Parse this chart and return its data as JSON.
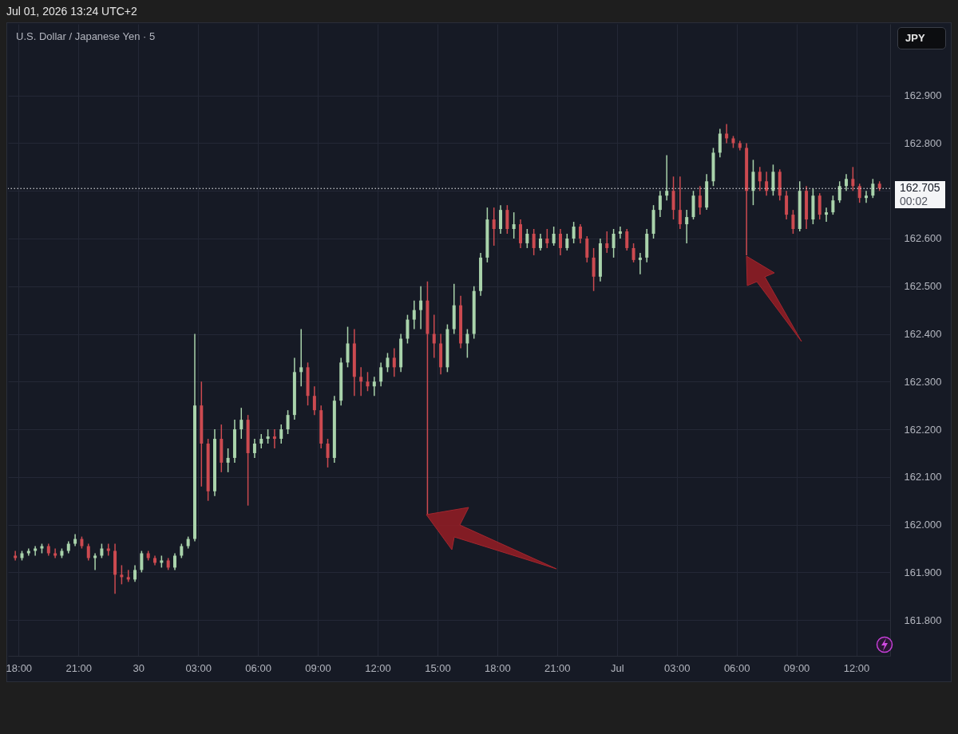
{
  "chart_data": {
    "type": "candlestick",
    "title": "U.S. Dollar / Japanese Yen · 5",
    "ylabel": "JPY",
    "annotations": [
      "Jul 01, 2026 13:24 UTC+2",
      "00:02"
    ],
    "x": [
      "2026-06-29T17:50",
      "2026-06-29T18:10",
      "2026-06-29T18:30",
      "2026-06-29T18:50",
      "2026-06-29T19:10",
      "2026-06-29T19:30",
      "2026-06-29T19:50",
      "2026-06-29T20:10",
      "2026-06-29T20:30",
      "2026-06-29T20:50",
      "2026-06-29T21:10",
      "2026-06-29T21:30",
      "2026-06-29T21:50",
      "2026-06-29T22:10",
      "2026-06-29T22:30",
      "2026-06-29T22:50",
      "2026-06-29T23:10",
      "2026-06-29T23:30",
      "2026-06-29T23:50",
      "2026-06-30T00:10",
      "2026-06-30T00:30",
      "2026-06-30T00:50",
      "2026-06-30T01:10",
      "2026-06-30T01:30",
      "2026-06-30T01:50",
      "2026-06-30T02:10",
      "2026-06-30T02:30",
      "2026-06-30T02:50",
      "2026-06-30T03:10",
      "2026-06-30T03:30",
      "2026-06-30T03:50",
      "2026-06-30T04:10",
      "2026-06-30T04:30",
      "2026-06-30T04:50",
      "2026-06-30T05:10",
      "2026-06-30T05:30",
      "2026-06-30T05:50",
      "2026-06-30T06:10",
      "2026-06-30T06:30",
      "2026-06-30T06:50",
      "2026-06-30T07:10",
      "2026-06-30T07:30",
      "2026-06-30T07:50",
      "2026-06-30T08:10",
      "2026-06-30T08:30",
      "2026-06-30T08:50",
      "2026-06-30T09:10",
      "2026-06-30T09:30",
      "2026-06-30T09:50",
      "2026-06-30T10:10",
      "2026-06-30T10:30",
      "2026-06-30T10:50",
      "2026-06-30T11:10",
      "2026-06-30T11:30",
      "2026-06-30T11:50",
      "2026-06-30T12:10",
      "2026-06-30T12:30",
      "2026-06-30T12:50",
      "2026-06-30T13:10",
      "2026-06-30T13:30",
      "2026-06-30T13:50",
      "2026-06-30T14:10",
      "2026-06-30T14:30",
      "2026-06-30T14:50",
      "2026-06-30T15:10",
      "2026-06-30T15:30",
      "2026-06-30T15:50",
      "2026-06-30T16:10",
      "2026-06-30T16:30",
      "2026-06-30T16:50",
      "2026-06-30T17:10",
      "2026-06-30T17:30",
      "2026-06-30T17:50",
      "2026-06-30T18:10",
      "2026-06-30T18:30",
      "2026-06-30T18:50",
      "2026-06-30T19:10",
      "2026-06-30T19:30",
      "2026-06-30T19:50",
      "2026-06-30T20:10",
      "2026-06-30T20:30",
      "2026-06-30T20:50",
      "2026-06-30T21:10",
      "2026-06-30T21:30",
      "2026-06-30T21:50",
      "2026-06-30T22:10",
      "2026-06-30T22:30",
      "2026-06-30T22:50",
      "2026-06-30T23:10",
      "2026-06-30T23:30",
      "2026-06-30T23:50",
      "2026-07-01T00:10",
      "2026-07-01T00:30",
      "2026-07-01T00:50",
      "2026-07-01T01:10",
      "2026-07-01T01:30",
      "2026-07-01T01:50",
      "2026-07-01T02:10",
      "2026-07-01T02:30",
      "2026-07-01T02:50",
      "2026-07-01T03:10",
      "2026-07-01T03:30",
      "2026-07-01T03:50",
      "2026-07-01T04:10",
      "2026-07-01T04:30",
      "2026-07-01T04:50",
      "2026-07-01T05:10",
      "2026-07-01T05:30",
      "2026-07-01T05:50",
      "2026-07-01T06:10",
      "2026-07-01T06:30",
      "2026-07-01T06:50",
      "2026-07-01T07:10",
      "2026-07-01T07:30",
      "2026-07-01T07:50",
      "2026-07-01T08:10",
      "2026-07-01T08:30",
      "2026-07-01T08:50",
      "2026-07-01T09:10",
      "2026-07-01T09:30",
      "2026-07-01T09:50",
      "2026-07-01T10:10",
      "2026-07-01T10:30",
      "2026-07-01T10:50",
      "2026-07-01T11:10",
      "2026-07-01T11:30",
      "2026-07-01T11:50",
      "2026-07-01T12:10",
      "2026-07-01T12:30",
      "2026-07-01T12:50",
      "2026-07-01T13:10"
    ],
    "ohlc": [
      [
        161.935,
        161.945,
        161.925,
        161.93
      ],
      [
        161.93,
        161.945,
        161.925,
        161.94
      ],
      [
        161.94,
        161.95,
        161.935,
        161.945
      ],
      [
        161.945,
        161.955,
        161.935,
        161.95
      ],
      [
        161.95,
        161.96,
        161.94,
        161.955
      ],
      [
        161.955,
        161.96,
        161.935,
        161.94
      ],
      [
        161.94,
        161.95,
        161.93,
        161.935
      ],
      [
        161.935,
        161.95,
        161.93,
        161.945
      ],
      [
        161.945,
        161.965,
        161.94,
        161.96
      ],
      [
        161.96,
        161.98,
        161.955,
        161.97
      ],
      [
        161.97,
        161.975,
        161.95,
        161.955
      ],
      [
        161.955,
        161.96,
        161.925,
        161.93
      ],
      [
        161.93,
        161.94,
        161.905,
        161.935
      ],
      [
        161.935,
        161.96,
        161.93,
        161.95
      ],
      [
        161.95,
        161.96,
        161.935,
        161.945
      ],
      [
        161.945,
        161.96,
        161.855,
        161.895
      ],
      [
        161.895,
        161.915,
        161.875,
        161.89
      ],
      [
        161.89,
        161.905,
        161.88,
        161.885
      ],
      [
        161.885,
        161.915,
        161.88,
        161.905
      ],
      [
        161.905,
        161.945,
        161.9,
        161.94
      ],
      [
        161.94,
        161.945,
        161.925,
        161.93
      ],
      [
        161.93,
        161.935,
        161.915,
        161.92
      ],
      [
        161.92,
        161.935,
        161.91,
        161.925
      ],
      [
        161.925,
        161.93,
        161.905,
        161.91
      ],
      [
        161.91,
        161.94,
        161.905,
        161.935
      ],
      [
        161.935,
        161.96,
        161.93,
        161.955
      ],
      [
        161.955,
        161.975,
        161.95,
        161.97
      ],
      [
        161.97,
        162.4,
        161.965,
        162.25
      ],
      [
        162.25,
        162.3,
        162.08,
        162.17
      ],
      [
        162.17,
        162.18,
        162.05,
        162.07
      ],
      [
        162.07,
        162.2,
        162.06,
        162.18
      ],
      [
        162.18,
        162.21,
        162.11,
        162.13
      ],
      [
        162.13,
        162.16,
        162.11,
        162.14
      ],
      [
        162.14,
        162.22,
        162.13,
        162.2
      ],
      [
        162.2,
        162.245,
        162.18,
        162.22
      ],
      [
        162.22,
        162.23,
        162.04,
        162.15
      ],
      [
        162.15,
        162.18,
        162.14,
        162.17
      ],
      [
        162.17,
        162.19,
        162.16,
        162.18
      ],
      [
        162.18,
        162.2,
        162.17,
        162.185
      ],
      [
        162.185,
        162.2,
        162.16,
        162.18
      ],
      [
        162.18,
        162.21,
        162.17,
        162.2
      ],
      [
        162.2,
        162.24,
        162.19,
        162.23
      ],
      [
        162.23,
        162.35,
        162.22,
        162.32
      ],
      [
        162.32,
        162.41,
        162.29,
        162.33
      ],
      [
        162.33,
        162.34,
        162.25,
        162.27
      ],
      [
        162.27,
        162.29,
        162.23,
        162.24
      ],
      [
        162.24,
        162.25,
        162.16,
        162.17
      ],
      [
        162.17,
        162.18,
        162.12,
        162.14
      ],
      [
        162.14,
        162.27,
        162.13,
        162.26
      ],
      [
        162.26,
        162.35,
        162.25,
        162.34
      ],
      [
        162.34,
        162.415,
        162.33,
        162.38
      ],
      [
        162.38,
        162.41,
        162.27,
        162.31
      ],
      [
        162.31,
        162.33,
        162.27,
        162.3
      ],
      [
        162.3,
        162.32,
        162.28,
        162.29
      ],
      [
        162.29,
        162.31,
        162.27,
        162.3
      ],
      [
        162.3,
        162.34,
        162.29,
        162.33
      ],
      [
        162.33,
        162.36,
        162.32,
        162.35
      ],
      [
        162.35,
        162.37,
        162.31,
        162.33
      ],
      [
        162.33,
        162.4,
        162.32,
        162.39
      ],
      [
        162.39,
        162.44,
        162.38,
        162.43
      ],
      [
        162.43,
        162.47,
        162.41,
        162.45
      ],
      [
        162.45,
        162.5,
        162.41,
        162.47
      ],
      [
        162.47,
        162.51,
        162.02,
        162.4
      ],
      [
        162.4,
        162.44,
        162.35,
        162.38
      ],
      [
        162.38,
        162.4,
        162.315,
        162.33
      ],
      [
        162.33,
        162.42,
        162.32,
        162.41
      ],
      [
        162.41,
        162.505,
        162.4,
        162.46
      ],
      [
        162.46,
        162.48,
        162.37,
        162.38
      ],
      [
        162.38,
        162.41,
        162.35,
        162.4
      ],
      [
        162.4,
        162.5,
        162.39,
        162.49
      ],
      [
        162.49,
        162.57,
        162.48,
        162.56
      ],
      [
        162.56,
        162.665,
        162.55,
        162.64
      ],
      [
        162.64,
        162.665,
        162.585,
        162.62
      ],
      [
        162.62,
        162.67,
        162.61,
        162.66
      ],
      [
        162.66,
        162.67,
        162.61,
        162.62
      ],
      [
        162.62,
        162.655,
        162.6,
        162.63
      ],
      [
        162.63,
        162.64,
        162.58,
        162.59
      ],
      [
        162.59,
        162.62,
        162.58,
        162.61
      ],
      [
        162.61,
        162.62,
        162.565,
        162.58
      ],
      [
        162.58,
        162.61,
        162.575,
        162.6
      ],
      [
        162.6,
        162.62,
        162.58,
        162.59
      ],
      [
        162.59,
        162.625,
        162.585,
        162.61
      ],
      [
        162.61,
        162.62,
        162.565,
        162.58
      ],
      [
        162.58,
        162.61,
        162.575,
        162.6
      ],
      [
        162.6,
        162.635,
        162.59,
        162.625
      ],
      [
        162.625,
        162.63,
        162.59,
        162.6
      ],
      [
        162.6,
        162.605,
        162.55,
        162.56
      ],
      [
        162.56,
        162.58,
        162.49,
        162.52
      ],
      [
        162.52,
        162.6,
        162.51,
        162.59
      ],
      [
        162.59,
        162.615,
        162.57,
        162.58
      ],
      [
        162.58,
        162.62,
        162.56,
        162.61
      ],
      [
        162.61,
        162.625,
        162.6,
        162.615
      ],
      [
        162.615,
        162.62,
        162.575,
        162.58
      ],
      [
        162.58,
        162.59,
        162.55,
        162.555
      ],
      [
        162.555,
        162.57,
        162.525,
        162.56
      ],
      [
        162.56,
        162.62,
        162.55,
        162.61
      ],
      [
        162.61,
        162.67,
        162.6,
        162.66
      ],
      [
        162.66,
        162.7,
        162.645,
        162.69
      ],
      [
        162.69,
        162.775,
        162.68,
        162.7
      ],
      [
        162.7,
        162.73,
        162.64,
        162.66
      ],
      [
        162.66,
        162.73,
        162.62,
        162.63
      ],
      [
        162.63,
        162.66,
        162.59,
        162.645
      ],
      [
        162.645,
        162.7,
        162.64,
        162.69
      ],
      [
        162.69,
        162.71,
        162.65,
        162.665
      ],
      [
        162.665,
        162.735,
        162.66,
        162.72
      ],
      [
        162.72,
        162.79,
        162.71,
        162.78
      ],
      [
        162.78,
        162.83,
        162.77,
        162.82
      ],
      [
        162.82,
        162.84,
        162.8,
        162.81
      ],
      [
        162.81,
        162.815,
        162.79,
        162.8
      ],
      [
        162.8,
        162.805,
        162.785,
        162.79
      ],
      [
        162.79,
        162.8,
        162.565,
        162.7
      ],
      [
        162.7,
        162.765,
        162.67,
        162.74
      ],
      [
        162.74,
        162.75,
        162.7,
        162.72
      ],
      [
        162.72,
        162.74,
        162.69,
        162.7
      ],
      [
        162.7,
        162.755,
        162.69,
        162.74
      ],
      [
        162.74,
        162.745,
        162.68,
        162.69
      ],
      [
        162.69,
        162.7,
        162.64,
        162.65
      ],
      [
        162.65,
        162.66,
        162.61,
        162.62
      ],
      [
        162.62,
        162.72,
        162.615,
        162.7
      ],
      [
        162.7,
        162.71,
        162.62,
        162.64
      ],
      [
        162.64,
        162.705,
        162.63,
        162.69
      ],
      [
        162.69,
        162.695,
        162.64,
        162.65
      ],
      [
        162.65,
        162.665,
        162.635,
        162.655
      ],
      [
        162.655,
        162.69,
        162.65,
        162.68
      ],
      [
        162.68,
        162.72,
        162.675,
        162.71
      ],
      [
        162.71,
        162.735,
        162.7,
        162.725
      ],
      [
        162.725,
        162.75,
        162.7,
        162.71
      ],
      [
        162.71,
        162.715,
        162.675,
        162.685
      ],
      [
        162.685,
        162.7,
        162.675,
        162.69
      ],
      [
        162.69,
        162.725,
        162.685,
        162.715
      ],
      [
        162.715,
        162.72,
        162.7,
        162.705
      ]
    ],
    "colors": [
      "#cc4a50",
      "#a9d3ab",
      "#a9d3ab",
      "#a9d3ab",
      "#a9d3ab",
      "#cc4a50",
      "#cc4a50",
      "#a9d3ab",
      "#a9d3ab",
      "#a9d3ab",
      "#cc4a50",
      "#cc4a50",
      "#a9d3ab",
      "#a9d3ab",
      "#cc4a50",
      "#cc4a50",
      "#cc4a50",
      "#cc4a50",
      "#a9d3ab",
      "#a9d3ab",
      "#cc4a50",
      "#cc4a50",
      "#a9d3ab",
      "#cc4a50",
      "#a9d3ab",
      "#a9d3ab",
      "#a9d3ab",
      "#a9d3ab",
      "#cc4a50",
      "#cc4a50",
      "#a9d3ab",
      "#cc4a50",
      "#a9d3ab",
      "#a9d3ab",
      "#a9d3ab",
      "#cc4a50",
      "#a9d3ab",
      "#a9d3ab",
      "#a9d3ab",
      "#cc4a50",
      "#a9d3ab",
      "#a9d3ab",
      "#a9d3ab",
      "#a9d3ab",
      "#cc4a50",
      "#cc4a50",
      "#cc4a50",
      "#cc4a50",
      "#a9d3ab",
      "#a9d3ab",
      "#a9d3ab",
      "#cc4a50",
      "#cc4a50",
      "#cc4a50",
      "#a9d3ab",
      "#a9d3ab",
      "#a9d3ab",
      "#cc4a50",
      "#a9d3ab",
      "#a9d3ab",
      "#a9d3ab",
      "#a9d3ab",
      "#cc4a50",
      "#cc4a50",
      "#cc4a50",
      "#a9d3ab",
      "#a9d3ab",
      "#cc4a50",
      "#a9d3ab",
      "#a9d3ab",
      "#a9d3ab",
      "#a9d3ab",
      "#cc4a50",
      "#a9d3ab",
      "#cc4a50",
      "#a9d3ab",
      "#cc4a50",
      "#a9d3ab",
      "#cc4a50",
      "#a9d3ab",
      "#cc4a50",
      "#a9d3ab",
      "#cc4a50",
      "#a9d3ab",
      "#a9d3ab",
      "#cc4a50",
      "#cc4a50",
      "#cc4a50",
      "#a9d3ab",
      "#cc4a50",
      "#a9d3ab",
      "#a9d3ab",
      "#cc4a50",
      "#cc4a50",
      "#a9d3ab",
      "#a9d3ab",
      "#a9d3ab",
      "#a9d3ab",
      "#a9d3ab",
      "#cc4a50",
      "#cc4a50",
      "#a9d3ab",
      "#a9d3ab",
      "#cc4a50",
      "#a9d3ab",
      "#a9d3ab",
      "#a9d3ab",
      "#cc4a50",
      "#cc4a50",
      "#cc4a50",
      "#cc4a50",
      "#a9d3ab",
      "#cc4a50",
      "#cc4a50",
      "#a9d3ab",
      "#cc4a50",
      "#cc4a50",
      "#cc4a50",
      "#a9d3ab",
      "#cc4a50",
      "#a9d3ab",
      "#cc4a50",
      "#a9d3ab",
      "#a9d3ab",
      "#a9d3ab",
      "#a9d3ab",
      "#cc4a50",
      "#cc4a50",
      "#a9d3ab",
      "#a9d3ab",
      "#cc4a50"
    ],
    "xlim": [
      "2026-06-29T17:40",
      "2026-07-01T13:30"
    ],
    "xticks": [
      {
        "value": "2026-06-29T18:00",
        "label": "18:00"
      },
      {
        "value": "2026-06-29T21:00",
        "label": "21:00"
      },
      {
        "value": "2026-06-30T00:00",
        "label": "30"
      },
      {
        "value": "2026-06-30T03:00",
        "label": "03:00"
      },
      {
        "value": "2026-06-30T06:00",
        "label": "06:00"
      },
      {
        "value": "2026-06-30T09:00",
        "label": "09:00"
      },
      {
        "value": "2026-06-30T12:00",
        "label": "12:00"
      },
      {
        "value": "2026-06-30T15:00",
        "label": "15:00"
      },
      {
        "value": "2026-06-30T18:00",
        "label": "18:00"
      },
      {
        "value": "2026-06-30T21:00",
        "label": "21:00"
      },
      {
        "value": "2026-07-01T00:00",
        "label": "Jul"
      },
      {
        "value": "2026-07-01T03:00",
        "label": "03:00"
      },
      {
        "value": "2026-07-01T06:00",
        "label": "06:00"
      },
      {
        "value": "2026-07-01T09:00",
        "label": "09:00"
      },
      {
        "value": "2026-07-01T12:00",
        "label": "12:00"
      }
    ],
    "ylim": [
      161.725,
      163.05
    ],
    "yticks": [
      {
        "value": 161.8,
        "label": "161.800"
      },
      {
        "value": 161.9,
        "label": "161.900"
      },
      {
        "value": 162.0,
        "label": "162.000"
      },
      {
        "value": 162.1,
        "label": "162.100"
      },
      {
        "value": 162.2,
        "label": "162.200"
      },
      {
        "value": 162.3,
        "label": "162.300"
      },
      {
        "value": 162.4,
        "label": "162.400"
      },
      {
        "value": 162.5,
        "label": "162.500"
      },
      {
        "value": 162.6,
        "label": "162.600"
      },
      {
        "value": 162.7,
        "label": null
      },
      {
        "value": 162.8,
        "label": "162.800"
      },
      {
        "value": 162.9,
        "label": "162.900"
      }
    ],
    "ref_lines": [
      {
        "axis": "y",
        "value": 162.705,
        "label": "162.705",
        "color": "#f4f5f7",
        "line_style": "dotted"
      }
    ],
    "grid": true
  }
}
